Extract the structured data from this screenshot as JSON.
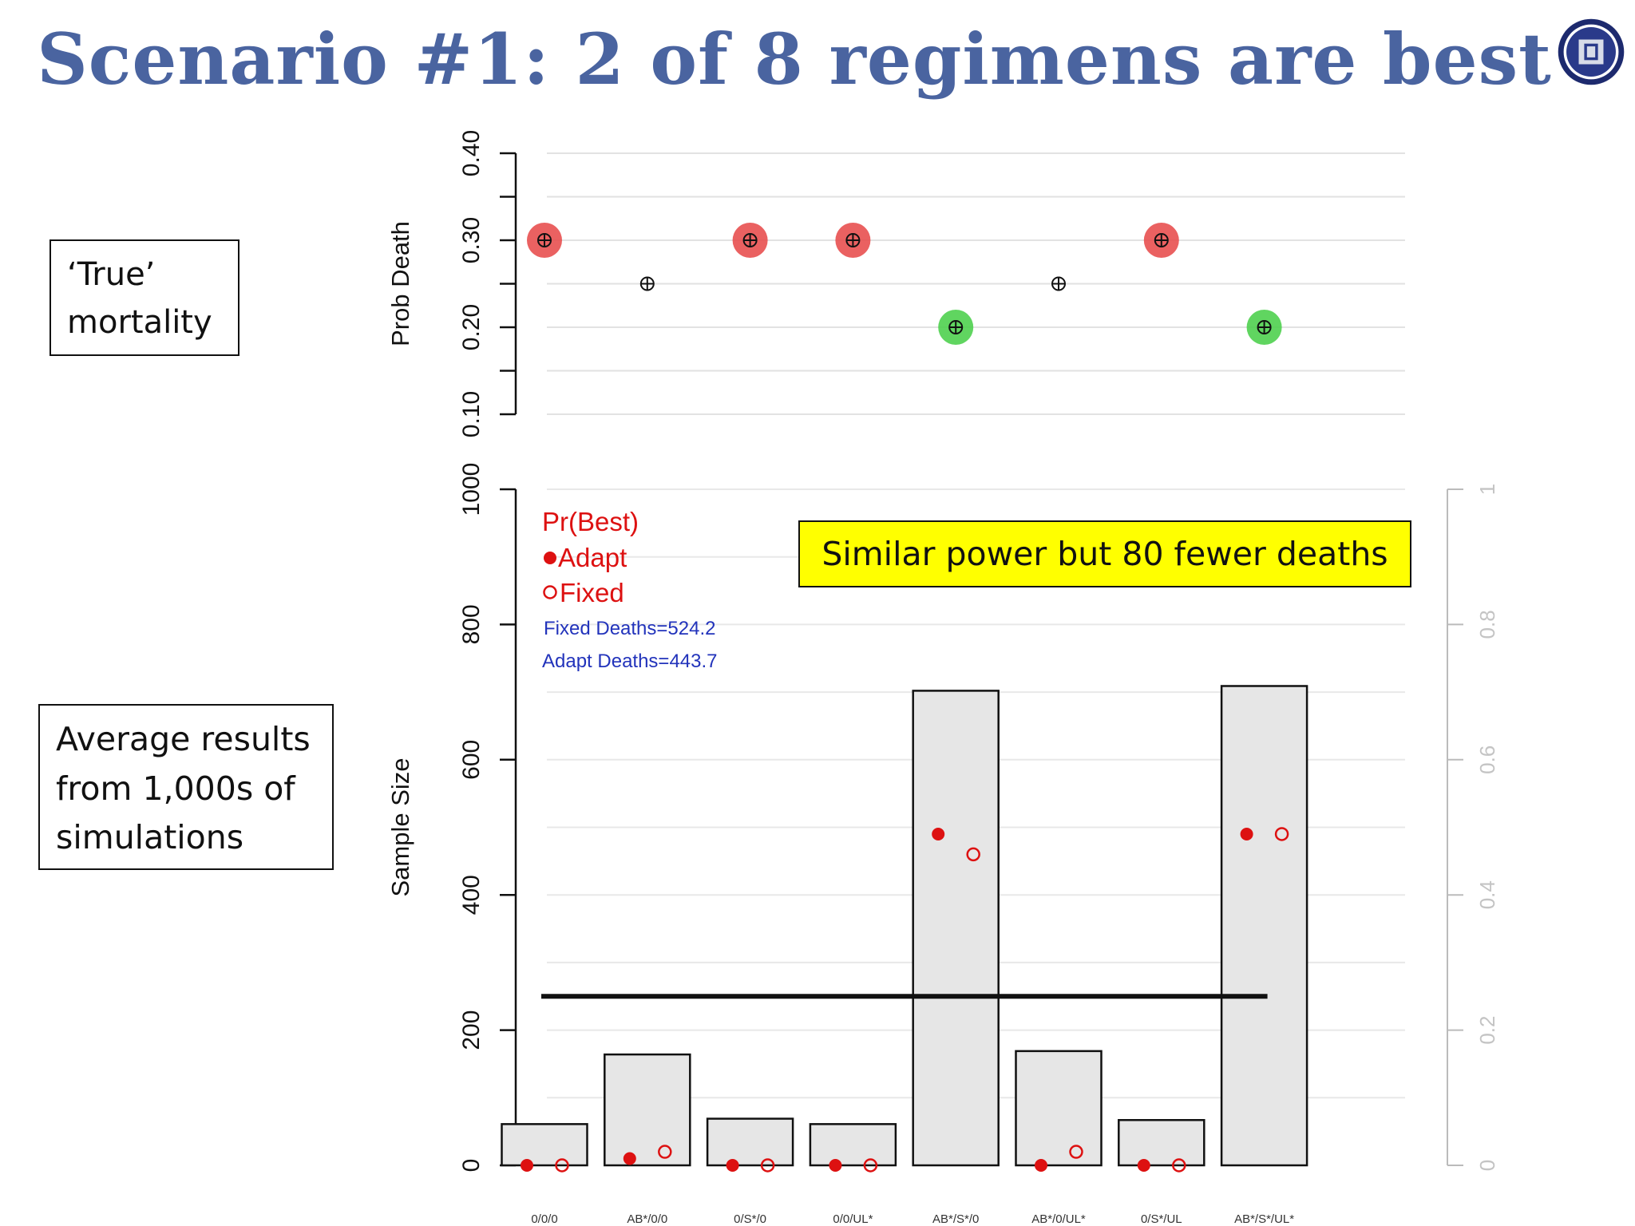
{
  "slide": {
    "title": "Scenario #1: 2 of 8 regimens are best",
    "true_box": [
      "‘True’",
      "mortality"
    ],
    "avg_box": [
      "Average results",
      "from 1,000s of",
      "simulations"
    ],
    "highlight": "Similar power but 80 fewer deaths"
  },
  "chart_data": [
    {
      "type": "scatter",
      "title": "",
      "xlabel": "",
      "ylabel": "Prob Death",
      "ylim": [
        0.1,
        0.4
      ],
      "yticks": [
        "0.10",
        "0.20",
        "0.30",
        "0.40"
      ],
      "grid": true,
      "categories": [
        "0/0/0",
        "AB*/0/0",
        "0/S*/0",
        "0/0/UL*",
        "AB*/S*/0",
        "AB*/0/UL*",
        "0/S*/UL",
        "AB*/S*/UL*"
      ],
      "values": [
        0.3,
        0.25,
        0.3,
        0.3,
        0.2,
        0.25,
        0.3,
        0.2
      ],
      "marker_colors": [
        "#e85050",
        "none",
        "#e85050",
        "#e85050",
        "#4fd04f",
        "none",
        "#e85050",
        "#4fd04f"
      ]
    },
    {
      "type": "bar",
      "ylabel": "Sample Size",
      "ylim": [
        0,
        1000
      ],
      "yticks": [
        "0",
        "200",
        "400",
        "600",
        "800",
        "1000"
      ],
      "y2lim": [
        0,
        1
      ],
      "y2ticks": [
        "0",
        "0.2",
        "0.4",
        "0.6",
        "0.8",
        "1"
      ],
      "grid": true,
      "categories": [
        "0/0/0",
        "AB*/0/0",
        "0/S*/0",
        "0/0/UL*",
        "AB*/S*/0",
        "AB*/0/UL*",
        "0/S*/UL",
        "AB*/S*/UL*"
      ],
      "values": [
        61,
        164,
        69,
        61,
        702,
        169,
        67,
        709
      ],
      "reference_line": 250,
      "legend": {
        "title": "Pr(Best)",
        "position": "top-left",
        "items": [
          {
            "name": "Adapt",
            "marker": "filled",
            "color": "#dd1111"
          },
          {
            "name": "Fixed",
            "marker": "open",
            "color": "#dd1111"
          }
        ],
        "notes": [
          "Fixed Deaths=524.2",
          "Adapt Deaths=443.7"
        ],
        "notes_color": "#2233bb"
      },
      "series": [
        {
          "name": "Adapt",
          "axis": "right",
          "values": [
            0.0,
            0.01,
            0.0,
            0.0,
            0.49,
            0.0,
            0.0,
            0.49
          ]
        },
        {
          "name": "Fixed",
          "axis": "right",
          "values": [
            0.0,
            0.02,
            0.0,
            0.0,
            0.46,
            0.02,
            0.0,
            0.49
          ]
        }
      ]
    }
  ]
}
